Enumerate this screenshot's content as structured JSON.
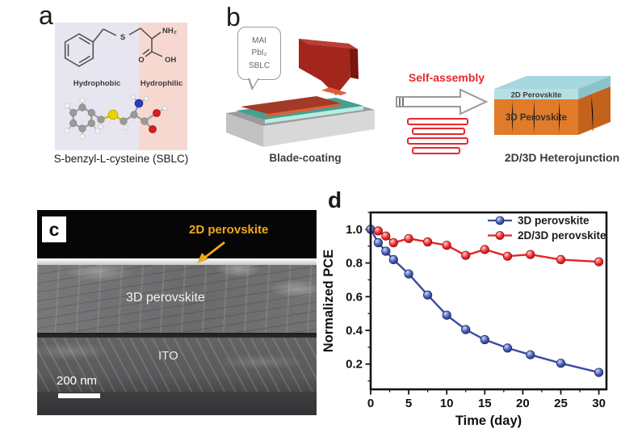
{
  "panels": {
    "a": {
      "label": "a",
      "hydrophobic": "Hydrophobic",
      "hydrophilic": "Hydrophilic",
      "atom_s": "S",
      "atom_nh2": "NH₂",
      "atom_o": "O",
      "atom_oh": "OH",
      "caption": "S-benzyl-L-cysteine (SBLC)",
      "hydrophobic_bg": "#e7e5f0",
      "hydrophilic_bg": "#f6d8d1"
    },
    "b": {
      "label": "b",
      "bubble": [
        "MAI",
        "PbI₂",
        "SBLC"
      ],
      "caption_left": "Blade-coating",
      "arrow_label": "Self-assembly",
      "layer_2d": "2D Perovskite",
      "layer_3d": "3D Perovskite",
      "caption_right": "2D/3D Heterojunction",
      "accent_red": "#e8282d"
    },
    "c": {
      "label": "c",
      "annotation": "2D perovskite",
      "annotation_color": "#f0a81c",
      "layer_3d": "3D perovskite",
      "layer_ito": "ITO",
      "scale_bar": "200 nm"
    },
    "d": {
      "label": "d"
    }
  },
  "chart_data": {
    "type": "line",
    "title": "",
    "xlabel": "Time (day)",
    "ylabel": "Normalized PCE",
    "xlim": [
      0,
      31
    ],
    "ylim": [
      0.05,
      1.1
    ],
    "xticks": [
      0,
      5,
      10,
      15,
      20,
      25,
      30
    ],
    "yticks": [
      0.2,
      0.4,
      0.6,
      0.8,
      1.0
    ],
    "x_minor_step": 2.5,
    "y_minor_step": 0.1,
    "grid": false,
    "legend_position": "top-right",
    "series": [
      {
        "name": "3D perovskite",
        "color": "#3a4ba2",
        "marker_stroke": "#1d2a66",
        "marker_gradient": [
          "#cdd8fb",
          "#4a5fb8",
          "#21306f"
        ],
        "x": [
          0,
          1,
          2,
          3,
          5,
          7.5,
          10,
          12.5,
          15,
          18,
          21,
          25,
          30
        ],
        "y": [
          1.0,
          0.92,
          0.87,
          0.82,
          0.735,
          0.61,
          0.49,
          0.405,
          0.345,
          0.295,
          0.255,
          0.205,
          0.15
        ]
      },
      {
        "name": "2D/3D perovskite",
        "color": "#e82129",
        "marker_stroke": "#990c11",
        "marker_gradient": [
          "#ffd0d0",
          "#f03030",
          "#a50d13"
        ],
        "x": [
          1,
          2,
          3,
          5,
          7.5,
          10,
          12.5,
          15,
          18,
          21,
          25,
          30
        ],
        "y": [
          0.99,
          0.96,
          0.92,
          0.945,
          0.925,
          0.905,
          0.845,
          0.88,
          0.84,
          0.85,
          0.82,
          0.807
        ]
      }
    ]
  }
}
